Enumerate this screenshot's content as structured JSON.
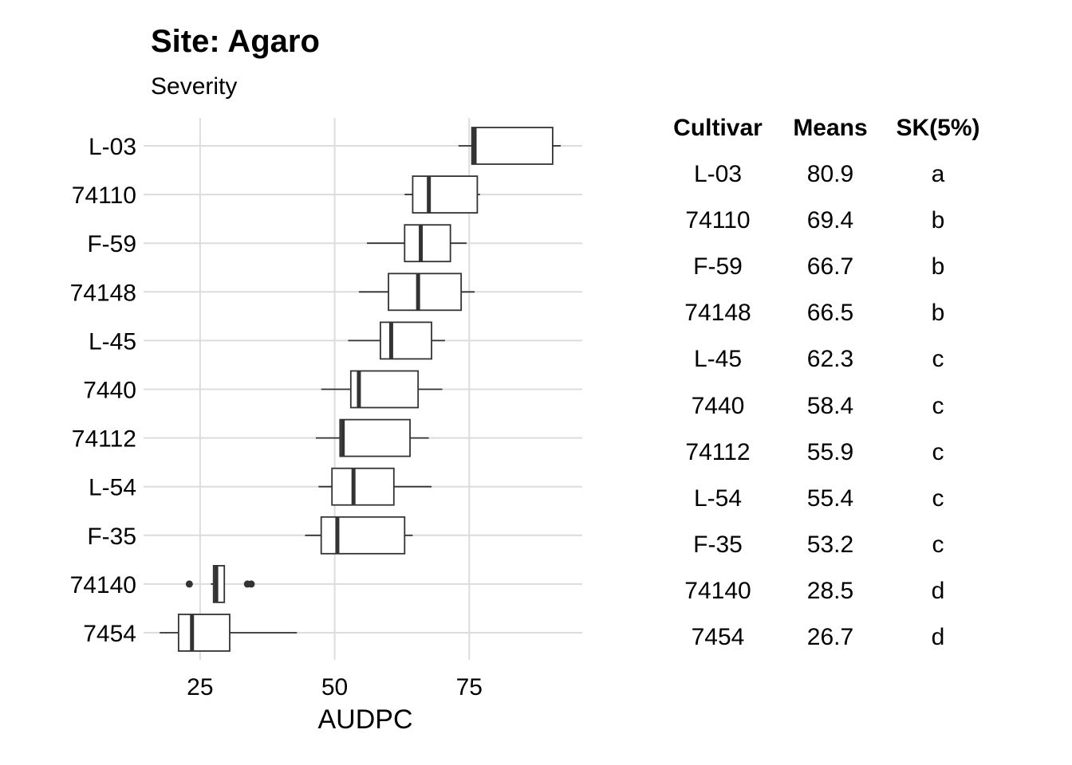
{
  "title": "Site: Agaro",
  "subtitle": "Severity",
  "chart_data": {
    "type": "boxplot",
    "orientation": "horizontal",
    "xlabel": "AUDPC",
    "xlim": [
      14.5,
      96
    ],
    "xticks": [
      25,
      50,
      75
    ],
    "grid": true,
    "categories": [
      "L-03",
      "74110",
      "F-59",
      "74148",
      "L-45",
      "7440",
      "74112",
      "L-54",
      "F-35",
      "74140",
      "7454"
    ],
    "boxes": [
      {
        "label": "L-03",
        "min": 73.0,
        "q1": 75.5,
        "median": 76.0,
        "q3": 90.5,
        "max": 92.0,
        "outliers": []
      },
      {
        "label": "74110",
        "min": 63.0,
        "q1": 64.5,
        "median": 67.5,
        "q3": 76.5,
        "max": 77.0,
        "outliers": []
      },
      {
        "label": "F-59",
        "min": 56.0,
        "q1": 63.0,
        "median": 66.0,
        "q3": 71.5,
        "max": 74.5,
        "outliers": []
      },
      {
        "label": "74148",
        "min": 54.5,
        "q1": 60.0,
        "median": 65.5,
        "q3": 73.5,
        "max": 76.0,
        "outliers": []
      },
      {
        "label": "L-45",
        "min": 52.5,
        "q1": 58.5,
        "median": 60.5,
        "q3": 68.0,
        "max": 70.5,
        "outliers": []
      },
      {
        "label": "7440",
        "min": 47.5,
        "q1": 53.0,
        "median": 54.5,
        "q3": 65.5,
        "max": 70.0,
        "outliers": []
      },
      {
        "label": "74112",
        "min": 46.5,
        "q1": 51.0,
        "median": 51.5,
        "q3": 64.0,
        "max": 67.5,
        "outliers": []
      },
      {
        "label": "L-54",
        "min": 47.0,
        "q1": 49.5,
        "median": 53.5,
        "q3": 61.0,
        "max": 68.0,
        "outliers": []
      },
      {
        "label": "F-35",
        "min": 44.5,
        "q1": 47.5,
        "median": 50.5,
        "q3": 63.0,
        "max": 64.5,
        "outliers": []
      },
      {
        "label": "74140",
        "min": 27.0,
        "q1": 27.5,
        "median": 28.0,
        "q3": 29.5,
        "max": 29.5,
        "outliers": [
          23.0,
          33.8,
          34.5
        ]
      },
      {
        "label": "7454",
        "min": 17.5,
        "q1": 21.0,
        "median": 23.5,
        "q3": 30.5,
        "max": 43.0,
        "outliers": []
      }
    ]
  },
  "table": {
    "headers": [
      "Cultivar",
      "Means",
      "SK(5%)"
    ],
    "rows": [
      [
        "L-03",
        "80.9",
        "a"
      ],
      [
        "74110",
        "69.4",
        "b"
      ],
      [
        "F-59",
        "66.7",
        "b"
      ],
      [
        "74148",
        "66.5",
        "b"
      ],
      [
        "L-45",
        "62.3",
        "c"
      ],
      [
        "7440",
        "58.4",
        "c"
      ],
      [
        "74112",
        "55.9",
        "c"
      ],
      [
        "L-54",
        "55.4",
        "c"
      ],
      [
        "F-35",
        "53.2",
        "c"
      ],
      [
        "74140",
        "28.5",
        "d"
      ],
      [
        "7454",
        "26.7",
        "d"
      ]
    ]
  }
}
